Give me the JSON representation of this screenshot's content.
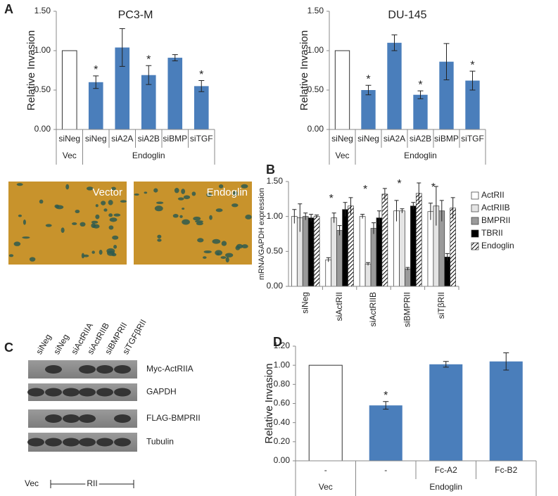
{
  "panel_labels": [
    "A",
    "B",
    "C",
    "D"
  ],
  "micrographs": [
    "Vector",
    "Endoglin"
  ],
  "blot": {
    "lanes": [
      "siNeg",
      "siNeg",
      "siActRIIA",
      "siActRIIB",
      "siBMPRII",
      "siTGFβRII"
    ],
    "bands": [
      "Myc-ActRIIA",
      "GAPDH",
      "FLAG-BMPRII",
      "Tubulin"
    ],
    "groups": [
      "Vec",
      "RII"
    ]
  },
  "chart_data": [
    {
      "type": "bar",
      "title": "PC3-M",
      "ylabel": "Relative Invasion",
      "categories": [
        "siNeg",
        "siNeg",
        "siA2A",
        "siA2B",
        "siBMP",
        "siTGF"
      ],
      "values": [
        1.0,
        0.6,
        1.04,
        0.69,
        0.91,
        0.55
      ],
      "errors": [
        0,
        0.08,
        0.24,
        0.12,
        0.04,
        0.07
      ],
      "stars": [
        null,
        "*",
        null,
        "*",
        null,
        "*"
      ],
      "colors": [
        "#ffffff",
        "#4a7ebb",
        "#4a7ebb",
        "#4a7ebb",
        "#4a7ebb",
        "#4a7ebb"
      ],
      "groups": [
        {
          "label": "Vec",
          "span": 1
        },
        {
          "label": "Endoglin",
          "span": 5
        }
      ],
      "ylim": [
        0,
        1.5
      ],
      "yticks": [
        {
          "value": 0,
          "label": "0.00"
        },
        {
          "value": 0.5,
          "label": "0.50"
        },
        {
          "value": 1,
          "label": "1.00"
        },
        {
          "value": 1.5,
          "label": "1.50"
        }
      ]
    },
    {
      "type": "bar",
      "title": "DU-145",
      "ylabel": "Relative Invasion",
      "categories": [
        "siNeg",
        "siNeg",
        "siA2A",
        "siA2B",
        "siBMP",
        "siTGF"
      ],
      "values": [
        1.0,
        0.5,
        1.1,
        0.44,
        0.86,
        0.62
      ],
      "errors": [
        0,
        0.06,
        0.1,
        0.05,
        0.23,
        0.12
      ],
      "stars": [
        null,
        "*",
        null,
        "*",
        null,
        "*"
      ],
      "colors": [
        "#ffffff",
        "#4a7ebb",
        "#4a7ebb",
        "#4a7ebb",
        "#4a7ebb",
        "#4a7ebb"
      ],
      "groups": [
        {
          "label": "Vec",
          "span": 1
        },
        {
          "label": "Endoglin",
          "span": 5
        }
      ],
      "ylim": [
        0,
        1.5
      ],
      "yticks": [
        {
          "value": 0,
          "label": "0.00"
        },
        {
          "value": 0.5,
          "label": "0.50"
        },
        {
          "value": 1,
          "label": "1.00"
        },
        {
          "value": 1.5,
          "label": "1.50"
        }
      ]
    },
    {
      "type": "grouped",
      "ylabel": "mRNA/GAPDH expression",
      "categories": [
        "siNeg",
        "siActRII",
        "siActRIIB",
        "siBMPRII",
        "siTβRII"
      ],
      "series": [
        {
          "name": "ActRII",
          "color": "#ffffff",
          "values": [
            1.0,
            0.38,
            1.0,
            1.08,
            1.07
          ],
          "errors": [
            0.1,
            0.03,
            0.03,
            0.15,
            0.12
          ]
        },
        {
          "name": "ActRIIB",
          "color": "#e4e4e4",
          "values": [
            0.98,
            0.98,
            0.32,
            1.08,
            1.15
          ],
          "errors": [
            0.2,
            0.07,
            0.02,
            0.03,
            0.28
          ]
        },
        {
          "name": "BMPRII",
          "color": "#9a9a9a",
          "values": [
            1.0,
            0.8,
            0.83,
            0.25,
            1.08
          ],
          "errors": [
            0.05,
            0.07,
            0.08,
            0.02,
            0.15
          ]
        },
        {
          "name": "TBRII",
          "color": "#000000",
          "values": [
            0.98,
            1.1,
            0.98,
            1.15,
            0.42
          ],
          "errors": [
            0.05,
            0.1,
            0.1,
            0.05,
            0.05
          ]
        },
        {
          "name": "Endoglin",
          "color": "#ffffff",
          "hatch": true,
          "values": [
            1.0,
            1.15,
            1.32,
            1.33,
            1.12
          ],
          "errors": [
            0.02,
            0.12,
            0.08,
            0.15,
            0.15
          ]
        }
      ],
      "stars": [
        null,
        "*",
        "*",
        "*",
        "*"
      ],
      "ylim": [
        0,
        1.5
      ],
      "yticks": [
        {
          "value": 0,
          "label": "0.00"
        },
        {
          "value": 0.5,
          "label": "0.50"
        },
        {
          "value": 1,
          "label": "1.00"
        },
        {
          "value": 1.5,
          "label": "1.50"
        }
      ]
    },
    {
      "type": "bar",
      "ylabel": "Relative Invasion",
      "categories": [
        "-",
        "-",
        "Fc-A2",
        "Fc-B2"
      ],
      "values": [
        1.0,
        0.58,
        1.01,
        1.04
      ],
      "errors": [
        0,
        0.04,
        0.03,
        0.09
      ],
      "stars": [
        null,
        "*",
        null,
        null
      ],
      "colors": [
        "#ffffff",
        "#4a7ebb",
        "#4a7ebb",
        "#4a7ebb"
      ],
      "groups": [
        {
          "label": "Vec",
          "span": 1
        },
        {
          "label": "Endoglin",
          "span": 3
        }
      ],
      "ylim": [
        0,
        1.2
      ],
      "yticks": [
        {
          "value": 0,
          "label": "0.00"
        },
        {
          "value": 0.2,
          "label": "0.20"
        },
        {
          "value": 0.4,
          "label": "0.40"
        },
        {
          "value": 0.6,
          "label": "0.60"
        },
        {
          "value": 0.8,
          "label": "0.80"
        },
        {
          "value": 1,
          "label": "1.00"
        },
        {
          "value": 1.2,
          "label": "1.20"
        }
      ]
    }
  ]
}
